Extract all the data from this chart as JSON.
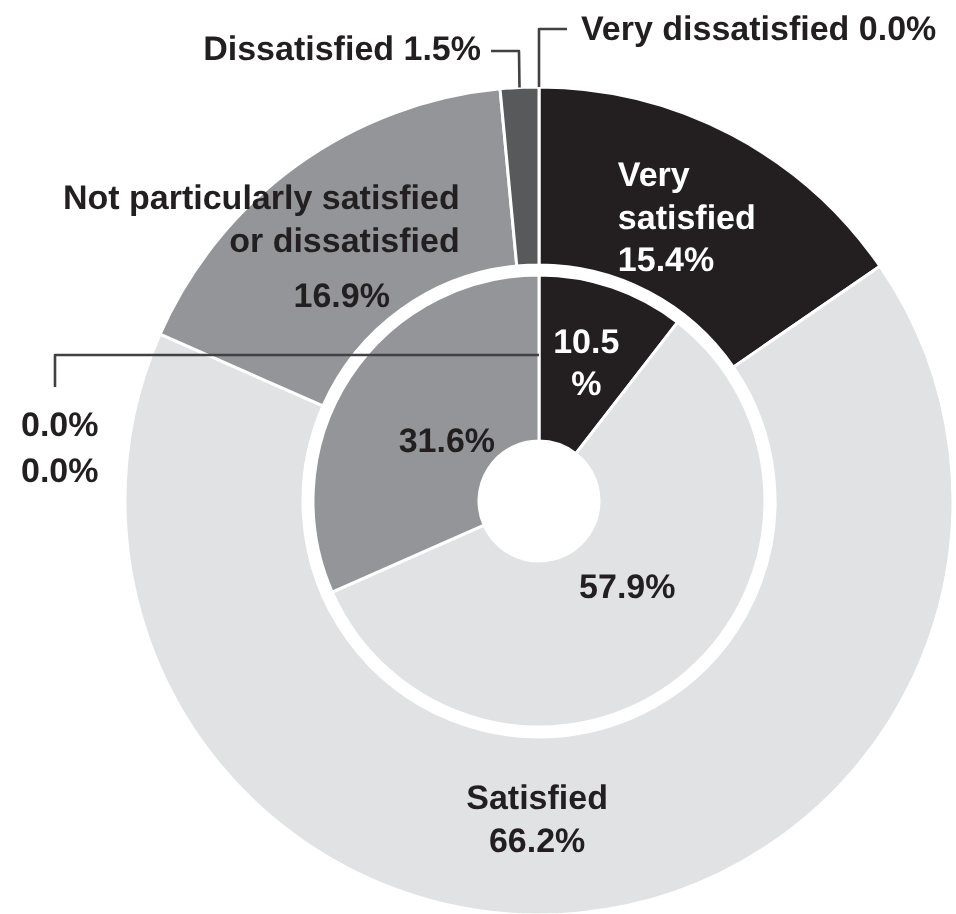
{
  "chart_data": {
    "type": "donut",
    "categories": [
      "Very satisfied",
      "Satisfied",
      "Not particularly satisfied or dissatisfied",
      "Dissatisfied",
      "Very dissatisfied"
    ],
    "colors": [
      "#231f20",
      "#e1e2e3",
      "#939598",
      "#58595b",
      "#bcbec0"
    ],
    "series": [
      {
        "values": [
          15.4,
          66.2,
          16.9,
          1.5,
          0.0
        ],
        "value_labels": [
          "15.4%",
          "66.2%",
          "16.9%",
          "1.5%",
          "0.0%"
        ]
      },
      {
        "values": [
          10.5,
          57.9,
          31.6,
          0.0,
          0.0
        ],
        "value_labels": [
          "10.5%",
          "57.9%",
          "31.6%",
          "0.0%",
          "0.0%"
        ]
      }
    ]
  }
}
